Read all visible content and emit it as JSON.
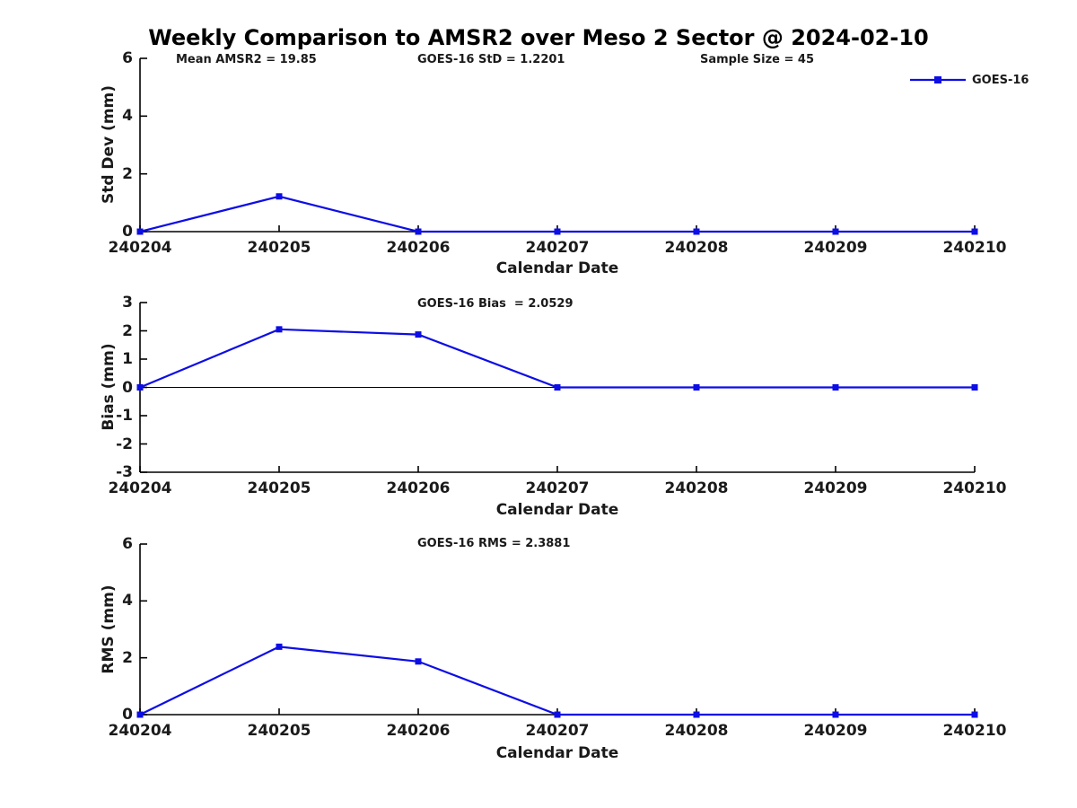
{
  "title": "Weekly Comparison to AMSR2 over Meso 2 Sector @ 2024-02-10",
  "legend": {
    "label": "GOES-16"
  },
  "colors": {
    "line": "#0d0de6",
    "axis": "#000000",
    "text": "#1a1a1a",
    "title": "#000000",
    "background": "#ffffff"
  },
  "chart_data": [
    {
      "type": "line",
      "name": "std_dev_panel",
      "annotations": [
        "Mean AMSR2 = 19.85",
        "GOES-16 StD = 1.2201",
        "Sample Size = 45"
      ],
      "xlabel": "Calendar Date",
      "ylabel": "Std Dev (mm)",
      "ylim": [
        0,
        6
      ],
      "yticks": [
        6,
        4,
        2,
        0
      ],
      "categories": [
        "240204",
        "240205",
        "240206",
        "240207",
        "240208",
        "240209",
        "240210"
      ],
      "series": [
        {
          "name": "GOES-16",
          "values": [
            0,
            1.2201,
            0,
            0,
            0,
            0,
            0
          ]
        }
      ],
      "legend_position": "top-right",
      "grid": false
    },
    {
      "type": "line",
      "name": "bias_panel",
      "annotations": [
        "GOES-16 Bias  = 2.0529"
      ],
      "xlabel": "Calendar Date",
      "ylabel": "Bias (mm)",
      "ylim": [
        -3,
        3
      ],
      "yticks": [
        3,
        2,
        1,
        0,
        -1,
        -2,
        -3
      ],
      "zero_line": true,
      "categories": [
        "240204",
        "240205",
        "240206",
        "240207",
        "240208",
        "240209",
        "240210"
      ],
      "series": [
        {
          "name": "GOES-16",
          "values": [
            0,
            2.0529,
            1.87,
            0,
            0,
            0,
            0
          ]
        }
      ],
      "grid": false
    },
    {
      "type": "line",
      "name": "rms_panel",
      "annotations": [
        "GOES-16 RMS = 2.3881"
      ],
      "xlabel": "Calendar Date",
      "ylabel": "RMS (mm)",
      "ylim": [
        0,
        6
      ],
      "yticks": [
        6,
        4,
        2,
        0
      ],
      "categories": [
        "240204",
        "240205",
        "240206",
        "240207",
        "240208",
        "240209",
        "240210"
      ],
      "series": [
        {
          "name": "GOES-16",
          "values": [
            0,
            2.3881,
            1.87,
            0,
            0,
            0,
            0
          ]
        }
      ],
      "grid": false
    }
  ]
}
